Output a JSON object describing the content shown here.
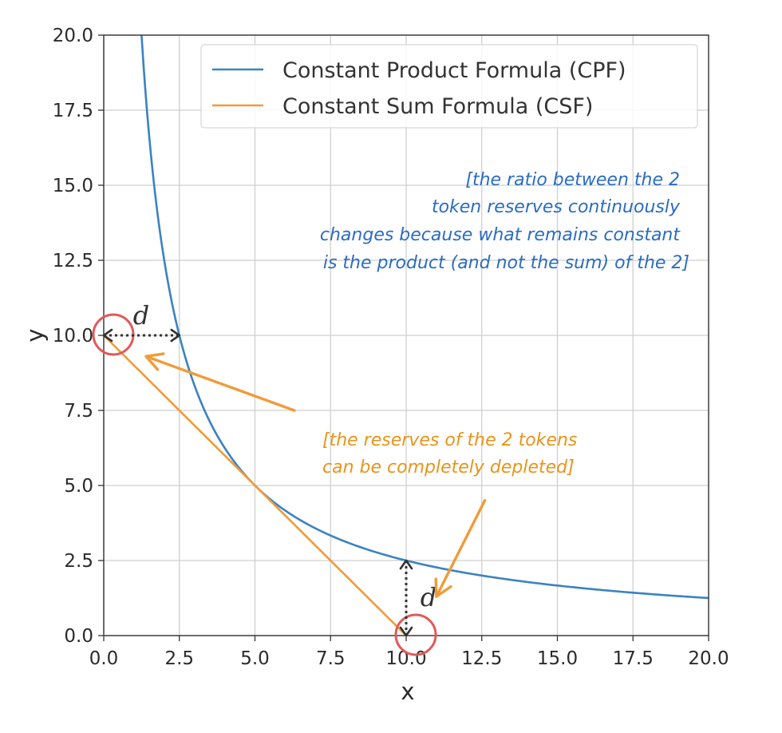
{
  "chart_data": {
    "type": "line",
    "title": "",
    "xlabel": "x",
    "ylabel": "y",
    "xlim": [
      0,
      20
    ],
    "ylim": [
      0,
      20
    ],
    "grid": true,
    "xticks": [
      "0.0",
      "2.5",
      "5.0",
      "7.5",
      "10.0",
      "12.5",
      "15.0",
      "17.5",
      "20.0"
    ],
    "yticks": [
      "0.0",
      "2.5",
      "5.0",
      "7.5",
      "10.0",
      "12.5",
      "15.0",
      "17.5",
      "20.0"
    ],
    "series": [
      {
        "name": "Constant Product Formula (CPF)",
        "formula": "x*y=25",
        "color": "#3a83c1",
        "x": [
          1.25,
          1.5,
          2,
          2.5,
          3,
          4,
          5,
          6,
          7.5,
          10,
          12.5,
          15,
          17.5,
          20
        ],
        "y": [
          20,
          16.67,
          12.5,
          10,
          8.33,
          6.25,
          5,
          4.17,
          3.33,
          2.5,
          2,
          1.67,
          1.43,
          1.25
        ]
      },
      {
        "name": "Constant Sum Formula (CSF)",
        "formula": "x+y=10",
        "color": "#f19b38",
        "x": [
          0,
          10
        ],
        "y": [
          10,
          0
        ]
      }
    ],
    "legend": {
      "location": "top-right",
      "entries": [
        "Constant Product Formula (CPF)",
        "Constant Sum Formula (CSF)"
      ]
    },
    "annotations": {
      "blue_note": [
        "[the ratio between the 2",
        "token reserves continuously",
        "changes because what remains constant",
        "is the product (and not the sum) of the 2]"
      ],
      "orange_note": [
        "[the reserves of the 2 tokens",
        "can be completely depleted]"
      ],
      "d_label": "d",
      "circles": [
        {
          "x": 0,
          "y": 10
        },
        {
          "x": 10,
          "y": 0
        }
      ],
      "gap_arrows": [
        {
          "orientation": "horizontal",
          "from": [
            0,
            10
          ],
          "to": [
            2.5,
            10
          ]
        },
        {
          "orientation": "vertical",
          "from": [
            10,
            0
          ],
          "to": [
            10,
            2.5
          ]
        }
      ],
      "pointer_arrows": [
        {
          "from": [
            6.3,
            7.5
          ],
          "to": [
            1.4,
            9.3
          ]
        },
        {
          "from": [
            12.6,
            4.5
          ],
          "to": [
            11.0,
            1.3
          ]
        }
      ],
      "circle_color": "#e05a5a",
      "annotation_dark": "#333333"
    }
  }
}
